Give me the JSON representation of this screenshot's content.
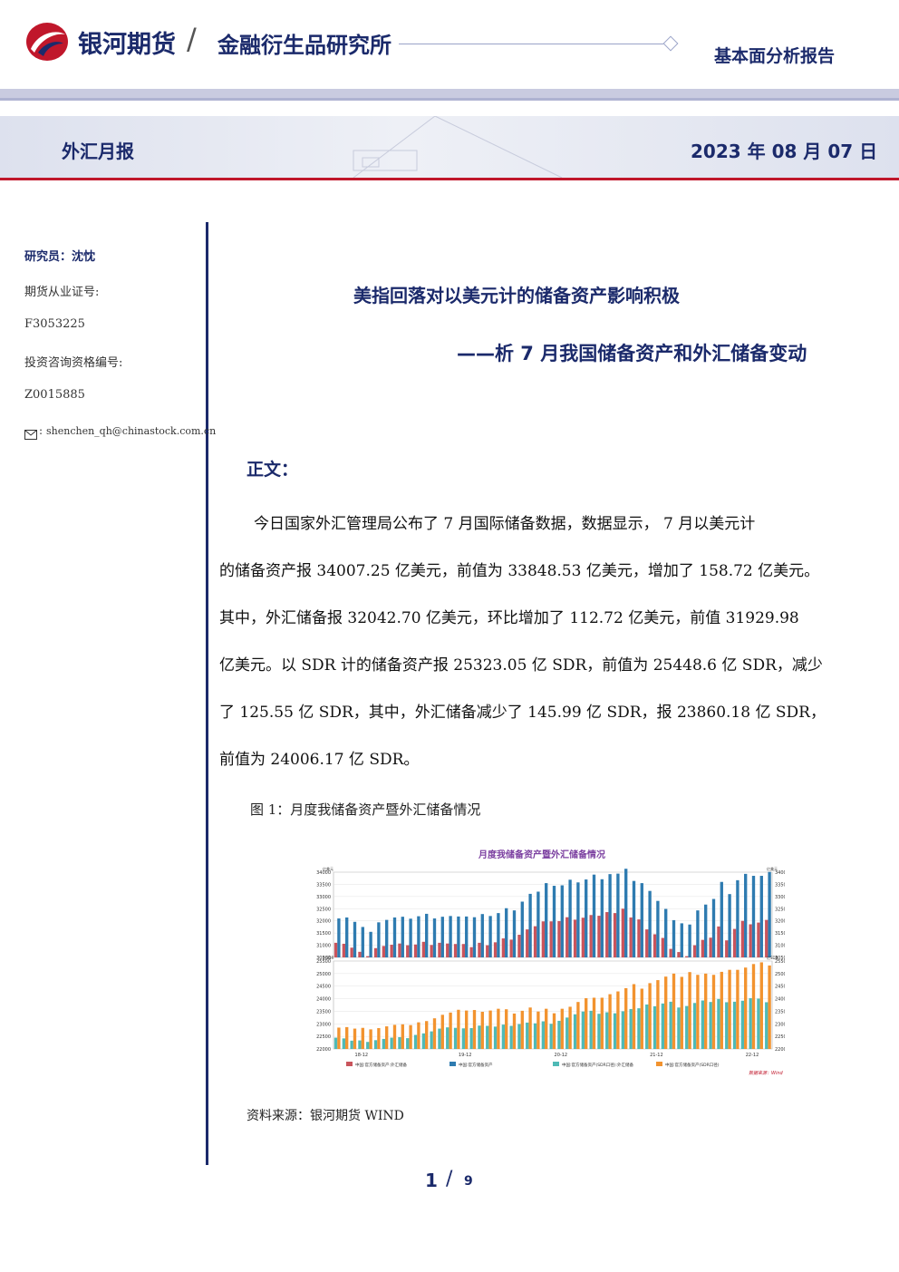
{
  "header": {
    "company": "银河期货",
    "divider": "/",
    "institute": "金融衍生品研究所",
    "report_type": "基本面分析报告",
    "column": "外汇月报",
    "date": "2023 年 08 月 07 日"
  },
  "sidebar": {
    "researcher": "研究员：沈忱",
    "license_label": "期货从业证号:",
    "license_no": "F3053225",
    "advisor_label": "投资咨询资格编号:",
    "advisor_no": "Z0015885",
    "email_prefix": ":",
    "email": "shenchen_qh@chinastock.com.cn"
  },
  "article": {
    "title": "美指回落对以美元计的储备资产影响积极",
    "subtitle": "——析 7 月我国储备资产和外汇储备变动",
    "section": "正文：",
    "lines": [
      "今日国家外汇管理局公布了 7 月国际储备数据，数据显示， 7 月以美元计",
      "的储备资产报 34007.25 亿美元，前值为 33848.53 亿美元，增加了 158.72 亿美元。",
      "其中，外汇储备报 32042.70 亿美元，环比增加了 112.72 亿美元，前值 31929.98",
      "亿美元。以 SDR 计的储备资产报 25323.05 亿 SDR，前值为 25448.6 亿 SDR，减少",
      "了 125.55 亿 SDR，其中，外汇储备减少了 145.99 亿 SDR，报 23860.18 亿 SDR，",
      "前值为 24006.17 亿 SDR。"
    ],
    "figure_caption": "图 1：月度我储备资产暨外汇储备情况",
    "source": "资料来源：银河期货 WIND"
  },
  "footer": {
    "page": "1",
    "sep": "/",
    "total": "9"
  },
  "chart_data": {
    "type": "bar",
    "title": "月度我储备资产暨外汇储备情况",
    "watermark": "数据来源：Wind",
    "top_panel": {
      "unit_left": "亿美元",
      "unit_right": "亿美元",
      "ylim": [
        30500,
        34000
      ],
      "ticks": [
        "34000",
        "33500",
        "33000",
        "32500",
        "32000",
        "31500",
        "31000",
        "30500"
      ],
      "series": [
        {
          "name": "中国:官方储备资产:外汇储备",
          "color": "#c9545c",
          "values": [
            31100,
            31060,
            30900,
            30730,
            30550,
            30880,
            30970,
            31020,
            31070,
            31000,
            31030,
            31140,
            31010,
            31100,
            31070,
            31050,
            31050,
            30920,
            31100,
            31000,
            31120,
            31280,
            31230,
            31430,
            31650,
            31780,
            31980,
            31980,
            31990,
            32150,
            32050,
            32130,
            32240,
            32210,
            32360,
            32320,
            32500,
            32140,
            32060,
            31650,
            31450,
            31300,
            30850,
            30720,
            30550,
            31000,
            31220,
            31310,
            31770,
            31200,
            31670,
            32000,
            31860,
            31930,
            32040
          ]
        },
        {
          "name": "中国:官方储备资产",
          "color": "#2e7bb0",
          "values": [
            32100,
            32140,
            31960,
            31750,
            31550,
            31940,
            32040,
            32140,
            32170,
            32090,
            32190,
            32290,
            32100,
            32170,
            32200,
            32180,
            32180,
            32150,
            32280,
            32200,
            32320,
            32520,
            32430,
            32790,
            33110,
            33200,
            33550,
            33440,
            33460,
            33690,
            33580,
            33700,
            33900,
            33710,
            33920,
            33940,
            34140,
            33640,
            33550,
            33230,
            32820,
            32490,
            32030,
            31900,
            31850,
            32430,
            32670,
            32900,
            33600,
            33100,
            33670,
            33930,
            33850,
            33850,
            34010
          ]
        }
      ]
    },
    "bottom_panel": {
      "unit_left": "亿SDR",
      "unit_right": "亿SDR",
      "ylim": [
        22000,
        25500
      ],
      "ticks": [
        "25500",
        "25000",
        "24500",
        "24000",
        "23500",
        "23000",
        "22500",
        "22000"
      ],
      "series": [
        {
          "name": "中国:官方储备资产(SDR口径):外汇储备",
          "color": "#4fbab6",
          "values": [
            22450,
            22420,
            22330,
            22340,
            22280,
            22350,
            22400,
            22450,
            22470,
            22430,
            22560,
            22620,
            22700,
            22810,
            22860,
            22840,
            22820,
            22830,
            22930,
            22920,
            22890,
            22970,
            22920,
            22990,
            23050,
            23020,
            23100,
            23000,
            23120,
            23250,
            23380,
            23490,
            23520,
            23400,
            23460,
            23420,
            23500,
            23590,
            23620,
            23770,
            23700,
            23810,
            23880,
            23650,
            23710,
            23830,
            23930,
            23870,
            23990,
            23860,
            23880,
            23920,
            24020,
            24006,
            23860
          ]
        },
        {
          "name": "中国:官方储备资产(SDR口径)",
          "color": "#f2932f",
          "values": [
            22850,
            22870,
            22810,
            22840,
            22780,
            22830,
            22900,
            22960,
            22980,
            22950,
            23060,
            23110,
            23220,
            23360,
            23450,
            23560,
            23530,
            23550,
            23480,
            23530,
            23600,
            23580,
            23410,
            23520,
            23650,
            23490,
            23600,
            23420,
            23600,
            23680,
            23870,
            24020,
            24040,
            24040,
            24180,
            24290,
            24420,
            24580,
            24400,
            24620,
            24740,
            24880,
            25000,
            24870,
            25060,
            24950,
            25000,
            24950,
            25070,
            25150,
            25150,
            25240,
            25380,
            25448,
            25323
          ]
        }
      ]
    },
    "x_ticks": [
      "18-12",
      "19-12",
      "20-12",
      "21-12",
      "22-12"
    ],
    "x_tick_index": [
      3,
      16,
      28,
      40,
      52
    ]
  }
}
